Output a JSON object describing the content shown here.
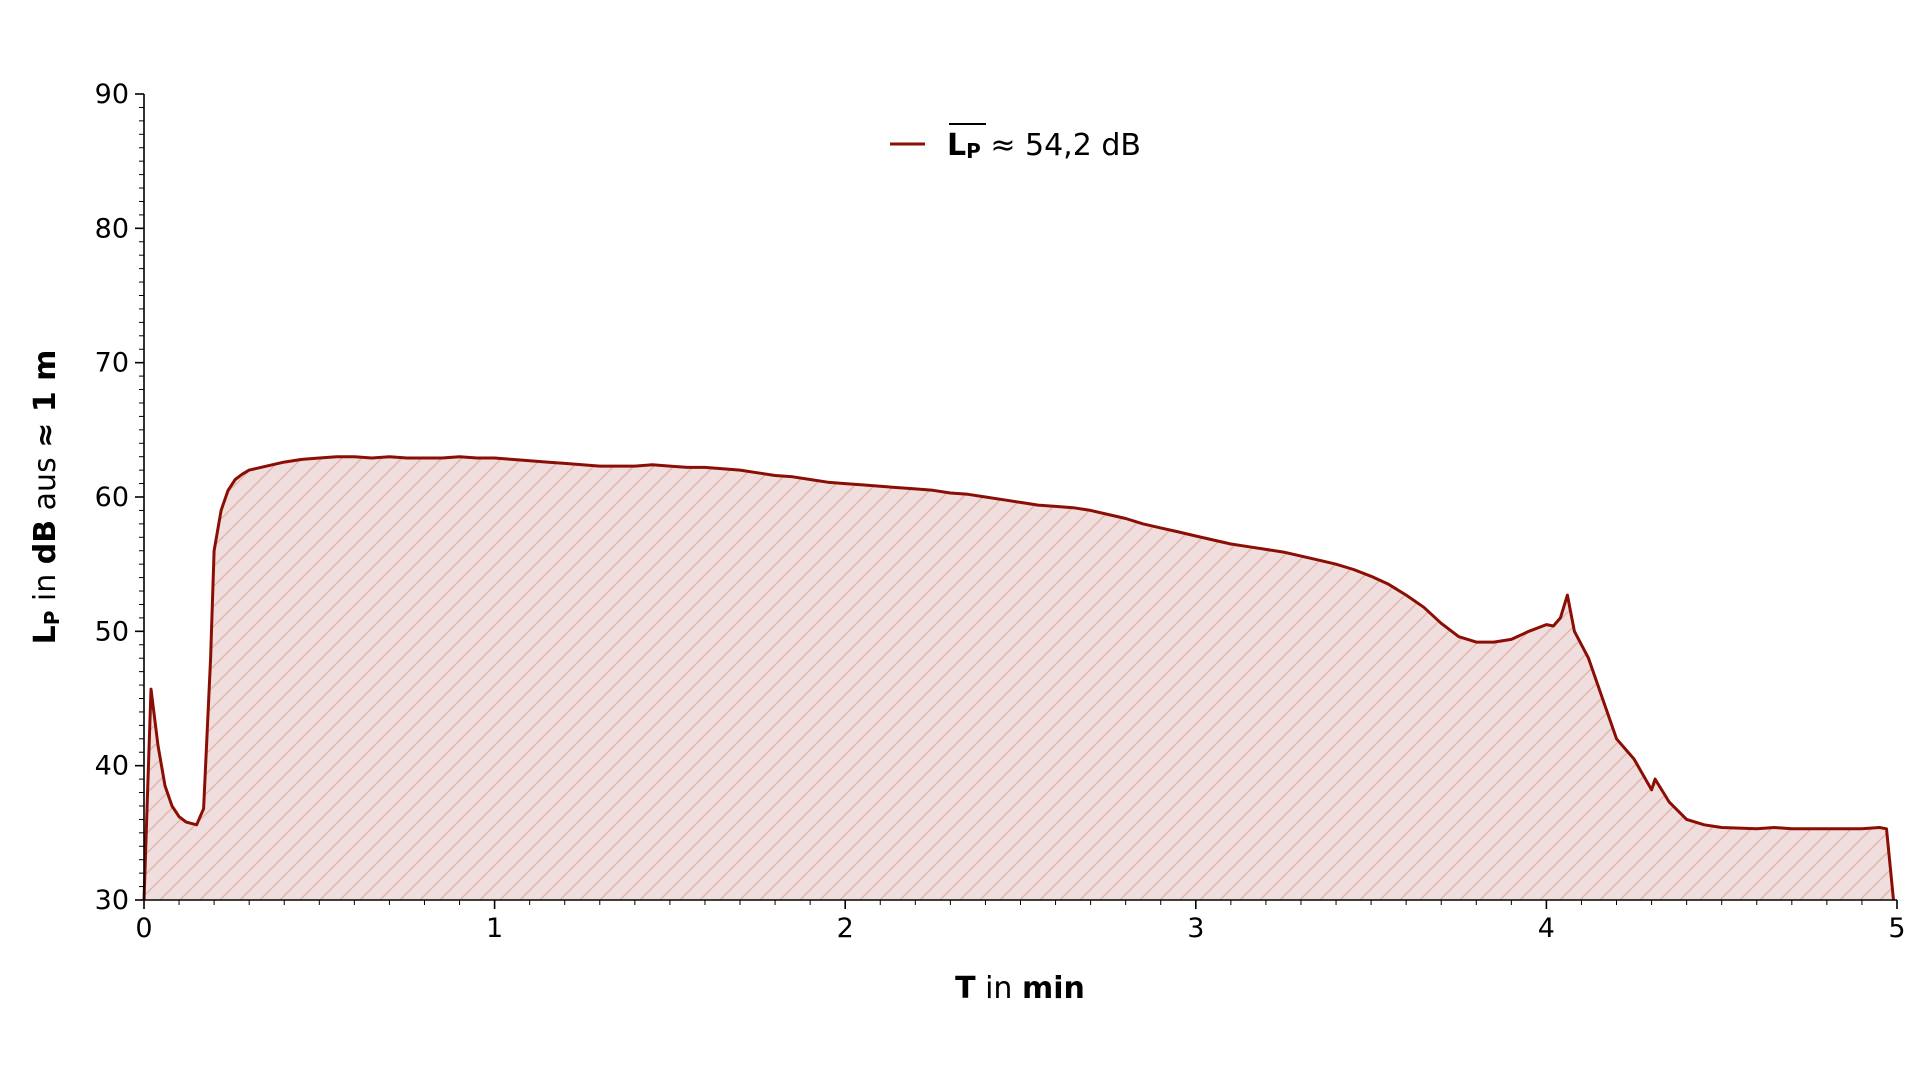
{
  "chart_data": {
    "type": "area",
    "title": "",
    "legend": {
      "placement": "top-center",
      "entries": [
        {
          "symbol": "L",
          "subscript": "P",
          "overline": true,
          "suffix": " ≈ 54,2 dB"
        }
      ]
    },
    "xlabel": {
      "bold": "T",
      "normal": " in ",
      "bold2": "min"
    },
    "ylabel": {
      "bold": "L",
      "sub": "P",
      "normal1": " in ",
      "bold2": "dB",
      "normal2": " aus ",
      "bold3": "≈ 1 m"
    },
    "xlim": [
      0,
      5
    ],
    "ylim": [
      30,
      90
    ],
    "xticks": [
      "0",
      "1",
      "2",
      "3",
      "4",
      "5"
    ],
    "yticks": [
      "30",
      "40",
      "50",
      "60",
      "70",
      "80",
      "90"
    ],
    "grid": false,
    "colors": {
      "line": "#8b0e04",
      "fill": "#f0dede",
      "hatch": "#e1b4a8"
    },
    "series": [
      {
        "name": "L_P ≈ 54,2 dB",
        "x": [
          0,
          0.02,
          0.04,
          0.06,
          0.08,
          0.1,
          0.12,
          0.15,
          0.17,
          0.19,
          0.2,
          0.22,
          0.24,
          0.26,
          0.28,
          0.3,
          0.35,
          0.4,
          0.45,
          0.5,
          0.55,
          0.6,
          0.65,
          0.7,
          0.75,
          0.8,
          0.85,
          0.9,
          0.95,
          1.0,
          1.05,
          1.1,
          1.15,
          1.2,
          1.25,
          1.3,
          1.35,
          1.4,
          1.45,
          1.5,
          1.55,
          1.6,
          1.65,
          1.7,
          1.75,
          1.8,
          1.85,
          1.9,
          1.95,
          2.0,
          2.05,
          2.1,
          2.15,
          2.2,
          2.25,
          2.3,
          2.35,
          2.4,
          2.45,
          2.5,
          2.55,
          2.6,
          2.65,
          2.7,
          2.75,
          2.8,
          2.85,
          2.9,
          2.95,
          3.0,
          3.05,
          3.1,
          3.15,
          3.2,
          3.25,
          3.3,
          3.35,
          3.4,
          3.45,
          3.5,
          3.55,
          3.6,
          3.65,
          3.7,
          3.75,
          3.8,
          3.85,
          3.9,
          3.95,
          4.0,
          4.02,
          4.04,
          4.06,
          4.08,
          4.12,
          4.16,
          4.2,
          4.25,
          4.3,
          4.31,
          4.35,
          4.4,
          4.45,
          4.5,
          4.6,
          4.65,
          4.7,
          4.8,
          4.9,
          4.95,
          4.97,
          4.99
        ],
        "values": [
          30,
          45.7,
          41.5,
          38.5,
          37.0,
          36.2,
          35.8,
          35.6,
          36.8,
          48.0,
          56.0,
          59.0,
          60.5,
          61.3,
          61.7,
          62.0,
          62.3,
          62.6,
          62.8,
          62.9,
          63.0,
          63.0,
          62.9,
          63.0,
          62.9,
          62.9,
          62.9,
          63.0,
          62.9,
          62.9,
          62.8,
          62.7,
          62.6,
          62.5,
          62.4,
          62.3,
          62.3,
          62.3,
          62.4,
          62.3,
          62.2,
          62.2,
          62.1,
          62.0,
          61.8,
          61.6,
          61.5,
          61.3,
          61.1,
          61.0,
          60.9,
          60.8,
          60.7,
          60.6,
          60.5,
          60.3,
          60.2,
          60.0,
          59.8,
          59.6,
          59.4,
          59.3,
          59.2,
          59.0,
          58.7,
          58.4,
          58.0,
          57.7,
          57.4,
          57.1,
          56.8,
          56.5,
          56.3,
          56.1,
          55.9,
          55.6,
          55.3,
          55.0,
          54.6,
          54.1,
          53.5,
          52.7,
          51.8,
          50.6,
          49.6,
          49.2,
          49.2,
          49.4,
          50.0,
          50.5,
          50.4,
          51.0,
          52.7,
          50.0,
          48.0,
          45.0,
          42.0,
          40.5,
          38.2,
          39.0,
          37.3,
          36.0,
          35.6,
          35.4,
          35.3,
          35.4,
          35.3,
          35.3,
          35.3,
          35.4,
          35.3,
          30.0
        ]
      }
    ]
  }
}
